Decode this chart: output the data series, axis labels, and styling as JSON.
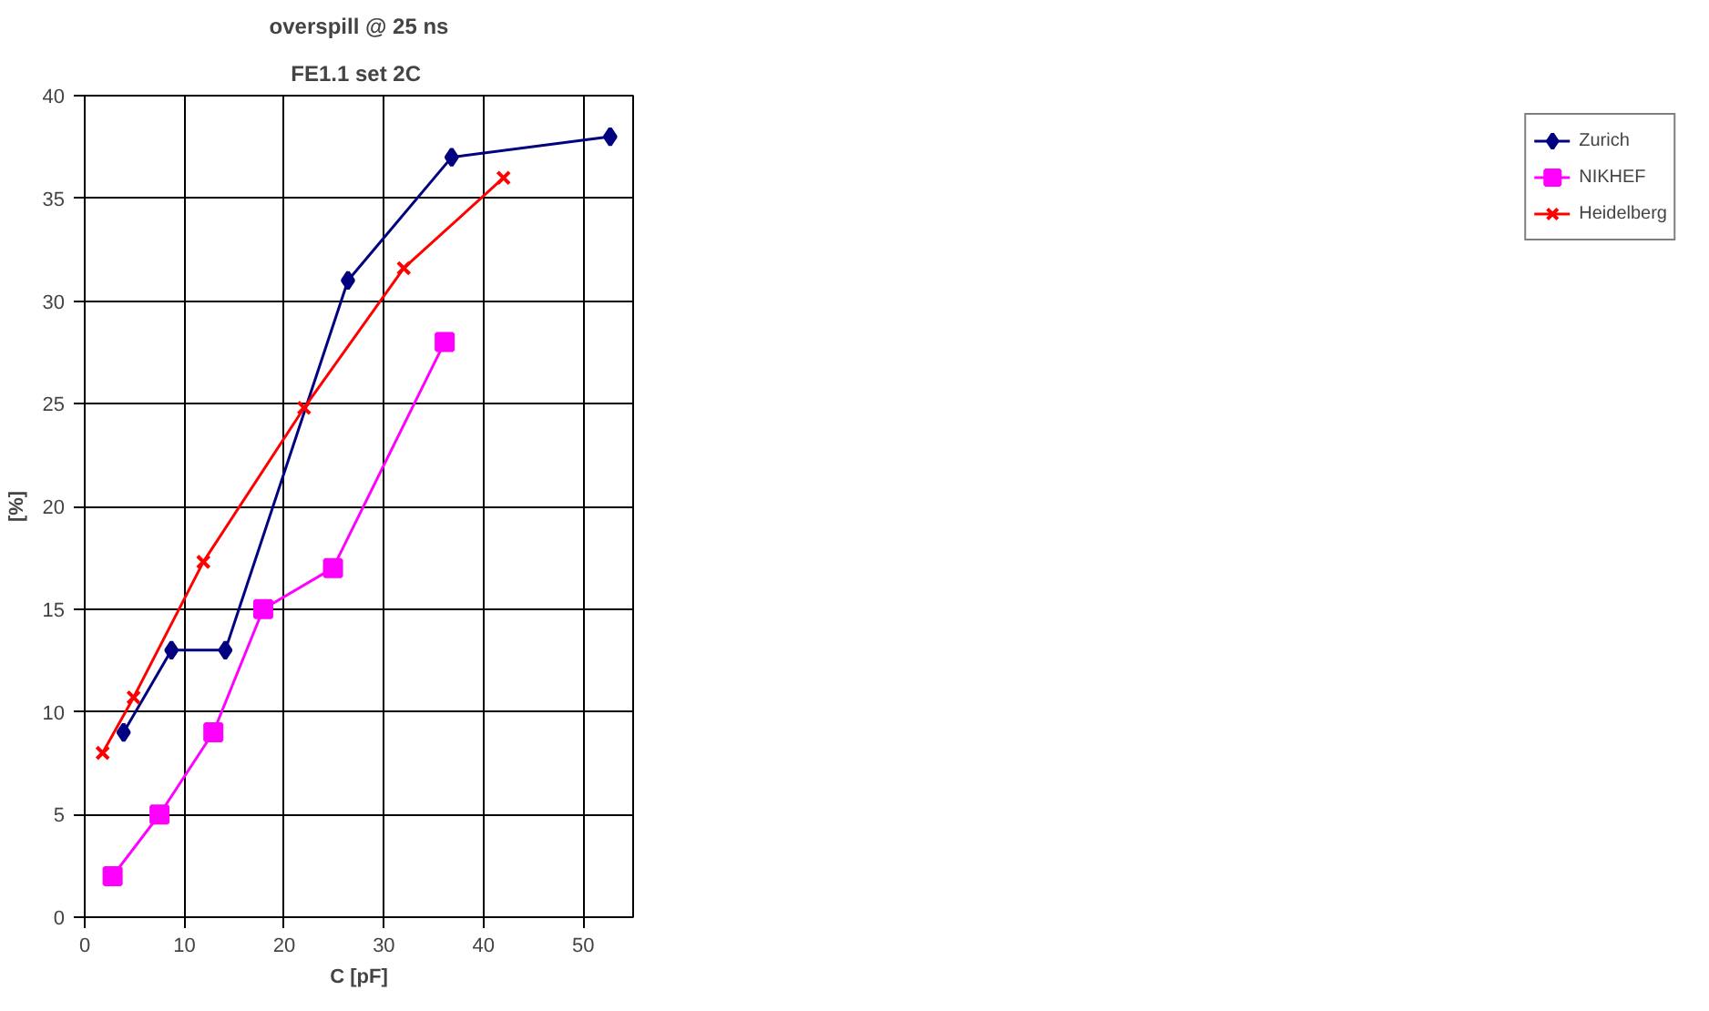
{
  "chart_data": {
    "type": "line",
    "title": "overspill @ 25 ns",
    "subtitle": "FE1.1  set 2C",
    "xlabel": "C [pF]",
    "ylabel": "[%]",
    "xlim": [
      0,
      55
    ],
    "xticks": [
      0,
      10,
      20,
      30,
      40,
      50
    ],
    "ylim": [
      0,
      40
    ],
    "yticks": [
      0,
      5,
      10,
      15,
      20,
      25,
      30,
      35,
      40
    ],
    "grid": true,
    "legend": "right",
    "series": [
      {
        "name": "Zurich",
        "color": "#000080",
        "marker": "diamond",
        "x": [
          3.9,
          8.7,
          14.1,
          26.4,
          36.8,
          52.7
        ],
        "values": [
          9,
          13,
          13,
          31,
          37,
          38
        ]
      },
      {
        "name": "NIKHEF",
        "color": "#ff00ff",
        "marker": "square",
        "x": [
          2.8,
          7.5,
          12.9,
          17.9,
          24.9,
          36.1
        ],
        "values": [
          2,
          5,
          9,
          15,
          17,
          28
        ]
      },
      {
        "name": "Heidelberg",
        "color": "#ff0000",
        "marker": "cross",
        "x": [
          1.8,
          4.9,
          11.9,
          22,
          32,
          42
        ],
        "values": [
          8,
          10.7,
          17.3,
          24.8,
          31.6,
          36
        ]
      }
    ]
  }
}
